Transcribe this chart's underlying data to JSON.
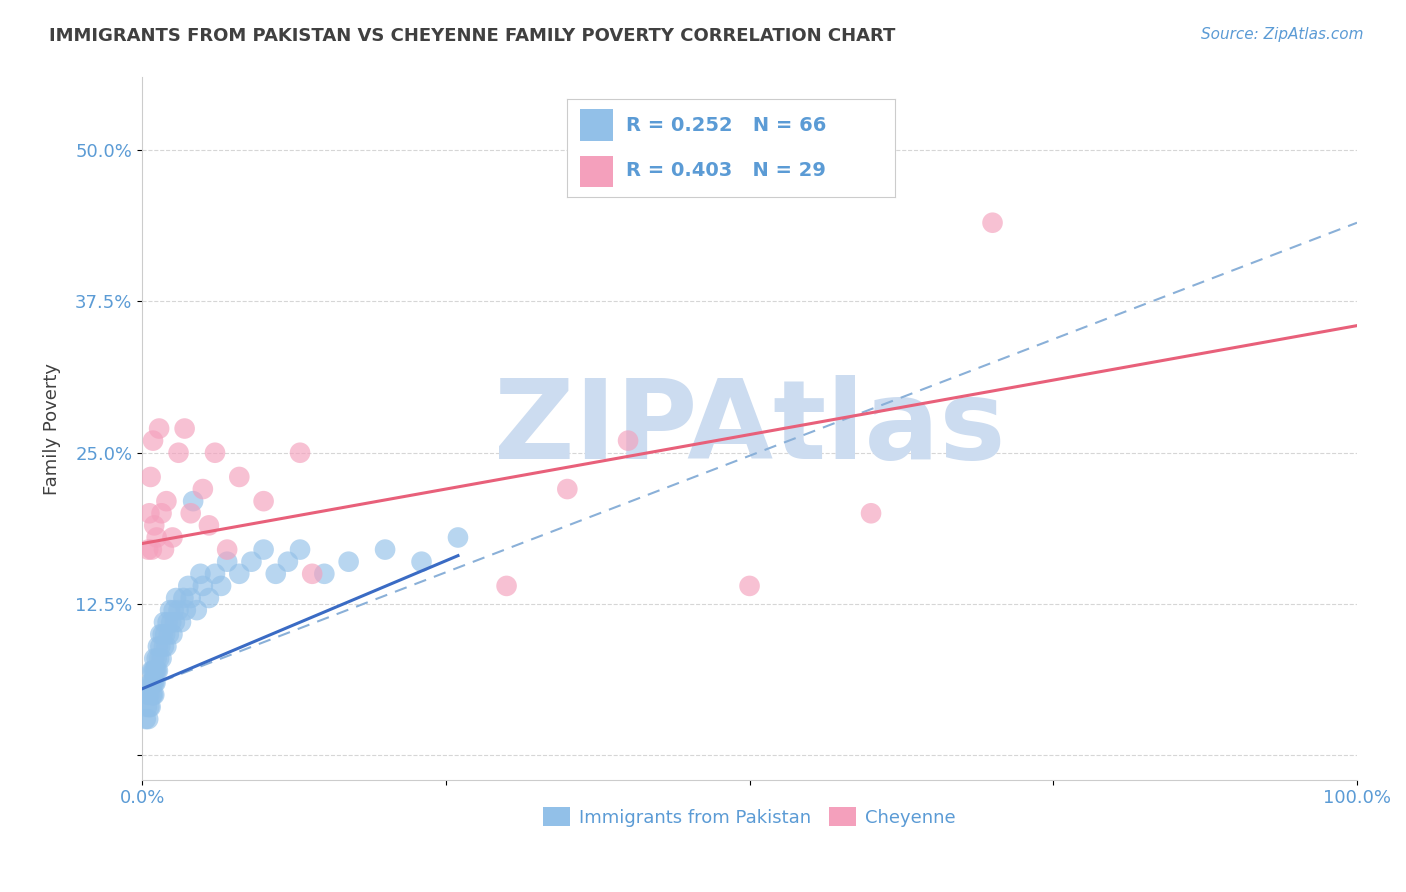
{
  "title": "IMMIGRANTS FROM PAKISTAN VS CHEYENNE FAMILY POVERTY CORRELATION CHART",
  "source_text": "Source: ZipAtlas.com",
  "xlabel": "",
  "ylabel": "Family Poverty",
  "legend_label_blue": "Immigrants from Pakistan",
  "legend_label_pink": "Cheyenne",
  "R_blue": 0.252,
  "N_blue": 66,
  "R_pink": 0.403,
  "N_pink": 29,
  "color_blue": "#92C0E8",
  "color_pink": "#F4A0BC",
  "trend_blue_solid_color": "#3A6BC4",
  "trend_blue_dash_color": "#8AB0D8",
  "trend_pink_color": "#E8607A",
  "axis_label_color": "#5B9BD5",
  "tick_label_color": "#5B9BD5",
  "title_color": "#404040",
  "watermark_color": "#CCDCF0",
  "background_color": "#FFFFFF",
  "xlim": [
    0.0,
    1.0
  ],
  "ylim": [
    -0.02,
    0.56
  ],
  "yticks": [
    0.0,
    0.125,
    0.25,
    0.375,
    0.5
  ],
  "ytick_labels": [
    "",
    "12.5%",
    "25.0%",
    "37.5%",
    "50.0%"
  ],
  "xticks": [
    0.0,
    0.25,
    0.5,
    0.75,
    1.0
  ],
  "xtick_labels": [
    "0.0%",
    "",
    "",
    "",
    "100.0%"
  ],
  "blue_x": [
    0.003,
    0.004,
    0.005,
    0.005,
    0.006,
    0.006,
    0.007,
    0.007,
    0.008,
    0.008,
    0.008,
    0.009,
    0.009,
    0.009,
    0.01,
    0.01,
    0.01,
    0.01,
    0.011,
    0.011,
    0.012,
    0.012,
    0.013,
    0.013,
    0.014,
    0.015,
    0.015,
    0.016,
    0.017,
    0.018,
    0.018,
    0.019,
    0.02,
    0.021,
    0.022,
    0.023,
    0.024,
    0.025,
    0.026,
    0.027,
    0.028,
    0.03,
    0.032,
    0.034,
    0.036,
    0.038,
    0.04,
    0.042,
    0.045,
    0.048,
    0.05,
    0.055,
    0.06,
    0.065,
    0.07,
    0.08,
    0.09,
    0.1,
    0.11,
    0.12,
    0.13,
    0.15,
    0.17,
    0.2,
    0.23,
    0.26
  ],
  "blue_y": [
    0.03,
    0.04,
    0.03,
    0.05,
    0.04,
    0.05,
    0.04,
    0.06,
    0.05,
    0.06,
    0.07,
    0.05,
    0.06,
    0.07,
    0.05,
    0.06,
    0.07,
    0.08,
    0.06,
    0.07,
    0.07,
    0.08,
    0.07,
    0.09,
    0.08,
    0.09,
    0.1,
    0.08,
    0.1,
    0.09,
    0.11,
    0.1,
    0.09,
    0.11,
    0.1,
    0.12,
    0.11,
    0.1,
    0.12,
    0.11,
    0.13,
    0.12,
    0.11,
    0.13,
    0.12,
    0.14,
    0.13,
    0.21,
    0.12,
    0.15,
    0.14,
    0.13,
    0.15,
    0.14,
    0.16,
    0.15,
    0.16,
    0.17,
    0.15,
    0.16,
    0.17,
    0.15,
    0.16,
    0.17,
    0.16,
    0.18
  ],
  "pink_x": [
    0.005,
    0.006,
    0.007,
    0.008,
    0.009,
    0.01,
    0.012,
    0.014,
    0.016,
    0.018,
    0.02,
    0.025,
    0.03,
    0.035,
    0.04,
    0.05,
    0.055,
    0.06,
    0.07,
    0.08,
    0.1,
    0.13,
    0.14,
    0.3,
    0.35,
    0.4,
    0.5,
    0.6,
    0.7
  ],
  "pink_y": [
    0.17,
    0.2,
    0.23,
    0.17,
    0.26,
    0.19,
    0.18,
    0.27,
    0.2,
    0.17,
    0.21,
    0.18,
    0.25,
    0.27,
    0.2,
    0.22,
    0.19,
    0.25,
    0.17,
    0.23,
    0.21,
    0.25,
    0.15,
    0.14,
    0.22,
    0.26,
    0.14,
    0.2,
    0.44
  ],
  "trend_blue_solid_x0": 0.0,
  "trend_blue_solid_x1": 0.26,
  "trend_blue_solid_y0": 0.055,
  "trend_blue_solid_y1": 0.165,
  "trend_blue_dash_x0": 0.0,
  "trend_blue_dash_x1": 1.0,
  "trend_blue_dash_y0": 0.055,
  "trend_blue_dash_y1": 0.44,
  "trend_pink_x0": 0.0,
  "trend_pink_x1": 1.0,
  "trend_pink_y0": 0.175,
  "trend_pink_y1": 0.355
}
